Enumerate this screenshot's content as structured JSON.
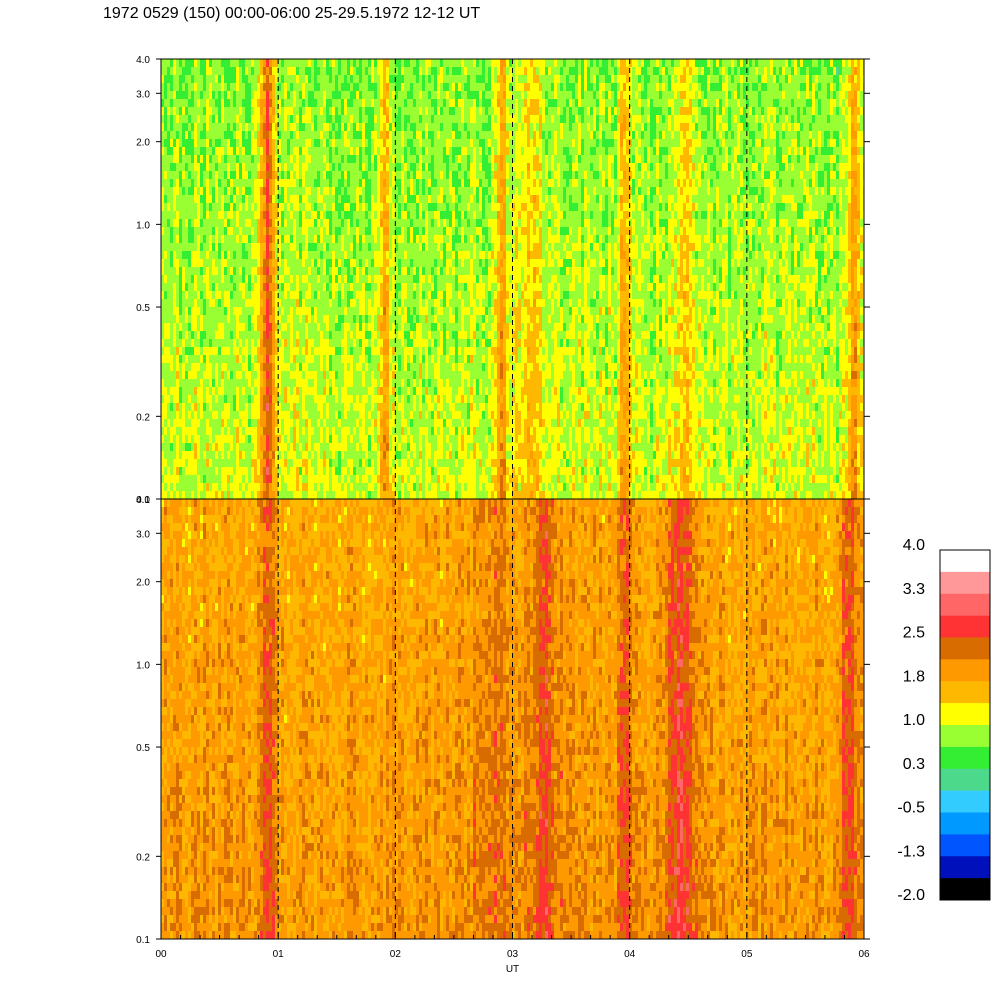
{
  "title": "1972 0529 (150) 00:00-06:00 25-29.5.1972  12-12 UT",
  "chart_data": {
    "type": "heatmap",
    "title": "1972 0529 (150) 00:00-06:00 25-29.5.1972  12-12 UT",
    "xlabel": "UT",
    "ylabel": "",
    "x_ticks": [
      "00",
      "01",
      "02",
      "03",
      "04",
      "05",
      "06"
    ],
    "x_range": [
      0,
      6
    ],
    "y_scale": "log",
    "y_range": [
      0.1,
      4.0
    ],
    "y_ticks": [
      0.1,
      0.2,
      0.5,
      1.0,
      2.0,
      3.0,
      4.0
    ],
    "y_tick_labels": [
      "0.1",
      "0.2",
      "0.5",
      "1.0",
      "2.0",
      "3.0",
      "4.0"
    ],
    "dashed_verticals_at": [
      1,
      2,
      3,
      4,
      5
    ],
    "panels": [
      {
        "name": "upper",
        "dominant_level": 0.6,
        "features": [
          {
            "ut": 0.9,
            "level": 2.4,
            "width": 0.06
          },
          {
            "ut": 1.9,
            "level": 1.6,
            "width": 0.04
          },
          {
            "ut": 2.9,
            "level": 1.6,
            "width": 0.05
          },
          {
            "ut": 3.12,
            "level": 1.2,
            "width": 0.15
          },
          {
            "ut": 3.95,
            "level": 1.6,
            "width": 0.06
          },
          {
            "ut": 4.45,
            "level": 1.2,
            "width": 0.12
          },
          {
            "ut": 5.9,
            "level": 1.6,
            "width": 0.05
          }
        ]
      },
      {
        "name": "lower",
        "dominant_level": 1.9,
        "features": [
          {
            "ut": 0.9,
            "level": 2.8,
            "width": 0.06
          },
          {
            "ut": 2.8,
            "level": 2.3,
            "width": 0.15
          },
          {
            "ut": 3.25,
            "level": 2.7,
            "width": 0.12
          },
          {
            "ut": 3.95,
            "level": 2.7,
            "width": 0.07
          },
          {
            "ut": 4.4,
            "level": 2.8,
            "width": 0.12
          },
          {
            "ut": 5.85,
            "level": 2.5,
            "width": 0.08
          }
        ]
      }
    ],
    "colorbar": {
      "labels": [
        "4.0",
        "3.3",
        "2.5",
        "1.8",
        "1.0",
        "0.3",
        "-0.5",
        "-1.3",
        "-2.0"
      ],
      "colors": [
        "#ffffff",
        "#ff9999",
        "#ff6666",
        "#ff3333",
        "#d96c00",
        "#ff9900",
        "#ffb800",
        "#ffff00",
        "#99ff33",
        "#33ee33",
        "#4dd98c",
        "#33ccff",
        "#0099ff",
        "#0055ff",
        "#0011bb",
        "#000000"
      ]
    }
  }
}
